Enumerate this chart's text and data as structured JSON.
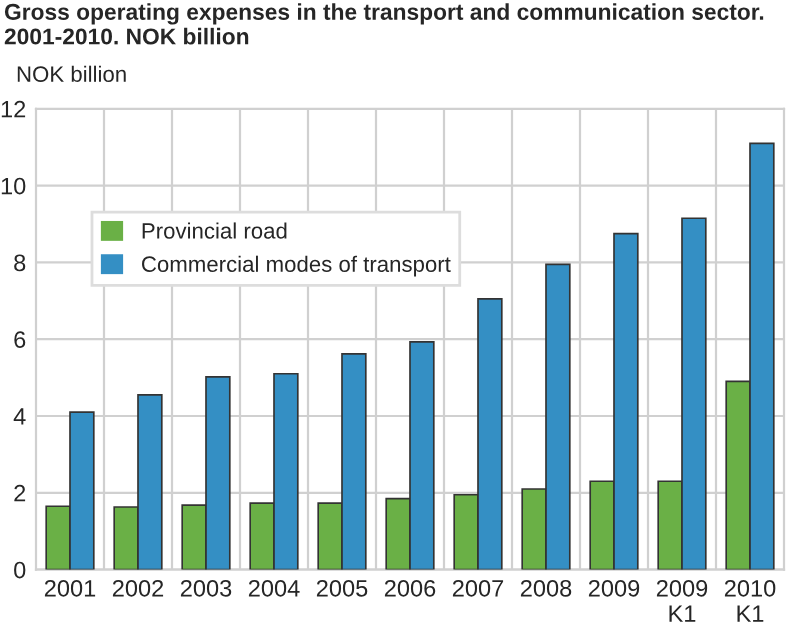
{
  "chart_data": {
    "type": "bar",
    "title": "Gross operating expenses in the transport and communication sector.\n2001-2010. NOK billion",
    "ylabel": "NOK billion",
    "categories": [
      "2001",
      "2002",
      "2003",
      "2004",
      "2005",
      "2006",
      "2007",
      "2008",
      "2009",
      "2009\nK1",
      "2010\nK1"
    ],
    "series": [
      {
        "name": "Provincial road",
        "color": "#6ab046",
        "values": [
          1.65,
          1.63,
          1.68,
          1.73,
          1.73,
          1.85,
          1.95,
          2.1,
          2.3,
          2.3,
          4.9
        ]
      },
      {
        "name": "Commercial modes of transport",
        "color": "#348fc4",
        "values": [
          4.1,
          4.55,
          5.02,
          5.1,
          5.62,
          5.93,
          7.05,
          7.95,
          8.75,
          9.15,
          11.1
        ]
      }
    ],
    "ylim": [
      0,
      12
    ],
    "yticks": [
      0,
      2,
      4,
      6,
      8,
      10,
      12
    ],
    "grid": true,
    "legend": "top left"
  }
}
